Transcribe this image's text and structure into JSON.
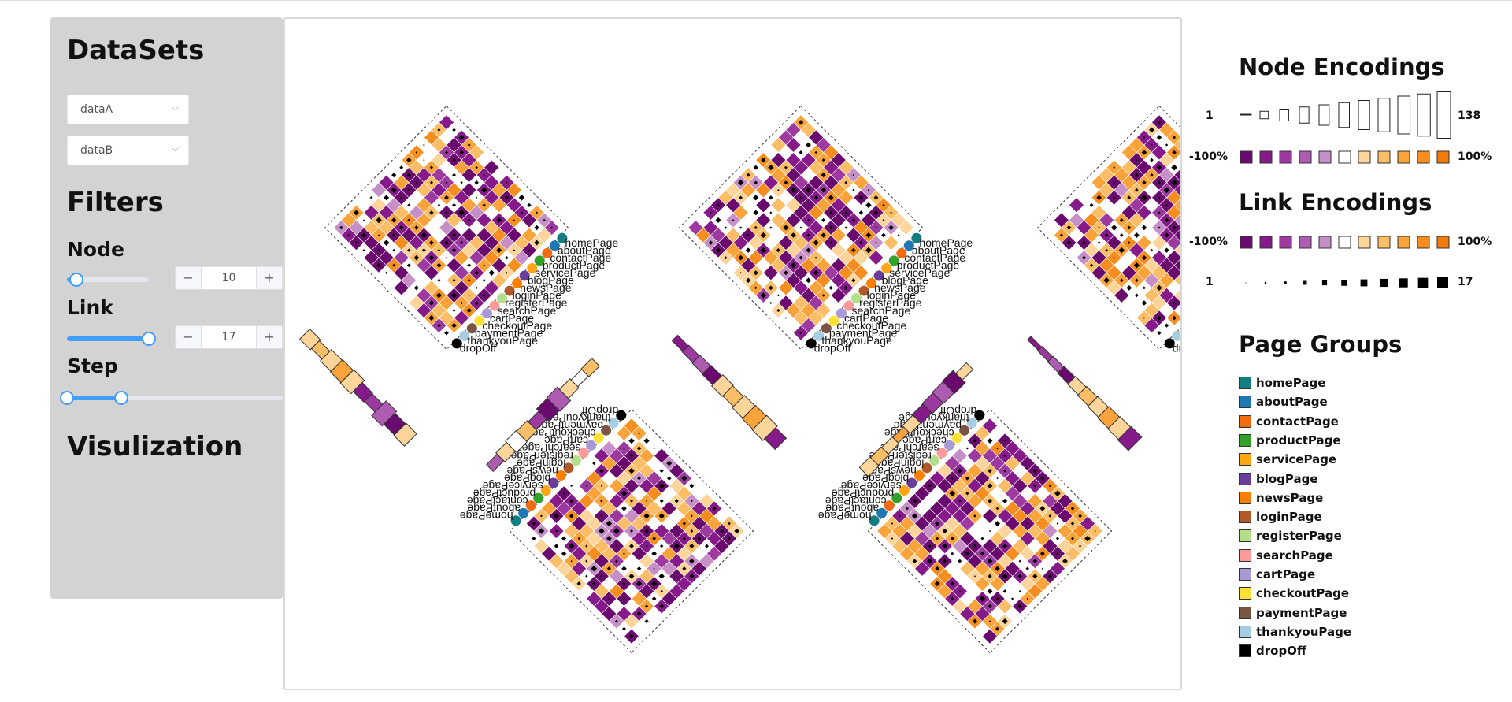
{
  "sidebar": {
    "datasets_title": "DataSets",
    "dataset_a": "dataA",
    "dataset_b": "dataB",
    "filters_title": "Filters",
    "node_label": "Node",
    "node_value": "10",
    "node_level": 0.12,
    "link_label": "Link",
    "link_value": "17",
    "link_level": 1.0,
    "step_label": "Step",
    "step_range": [
      0.0,
      0.25
    ],
    "visualization_title": "Visulization",
    "minus": "−",
    "plus": "+"
  },
  "legend": {
    "node_title": "Node Encodings",
    "node_size_min": "1",
    "node_size_max": "138",
    "node_diff_min": "-100%",
    "node_diff_max": "100%",
    "link_title": "Link Encodings",
    "link_diff_min": "-100%",
    "link_diff_max": "100%",
    "link_size_min": "1",
    "link_size_max": "17",
    "diverging_colors": [
      "#6a0a6e",
      "#861a8a",
      "#9c3aa0",
      "#ad5cb1",
      "#c68fc8",
      "#ffffff",
      "#fdd59a",
      "#fbbd66",
      "#f9a33a",
      "#f68e1f",
      "#f27a0a"
    ],
    "groups_title": "Page Groups",
    "groups": [
      {
        "name": "homePage",
        "color": "#137e80"
      },
      {
        "name": "aboutPage",
        "color": "#1f78b4"
      },
      {
        "name": "contactPage",
        "color": "#f26b10"
      },
      {
        "name": "productPage",
        "color": "#33a02c"
      },
      {
        "name": "servicePage",
        "color": "#ffa516"
      },
      {
        "name": "blogPage",
        "color": "#6a3d9a"
      },
      {
        "name": "newsPage",
        "color": "#ff7f00"
      },
      {
        "name": "loginPage",
        "color": "#b15928"
      },
      {
        "name": "registerPage",
        "color": "#b2df8a"
      },
      {
        "name": "searchPage",
        "color": "#fb9a99"
      },
      {
        "name": "cartPage",
        "color": "#a79ad6"
      },
      {
        "name": "checkoutPage",
        "color": "#ffe135"
      },
      {
        "name": "paymentPage",
        "color": "#7b5444"
      },
      {
        "name": "thankyouPage",
        "color": "#a6cee3"
      },
      {
        "name": "dropOff",
        "color": "#000000"
      }
    ]
  }
}
